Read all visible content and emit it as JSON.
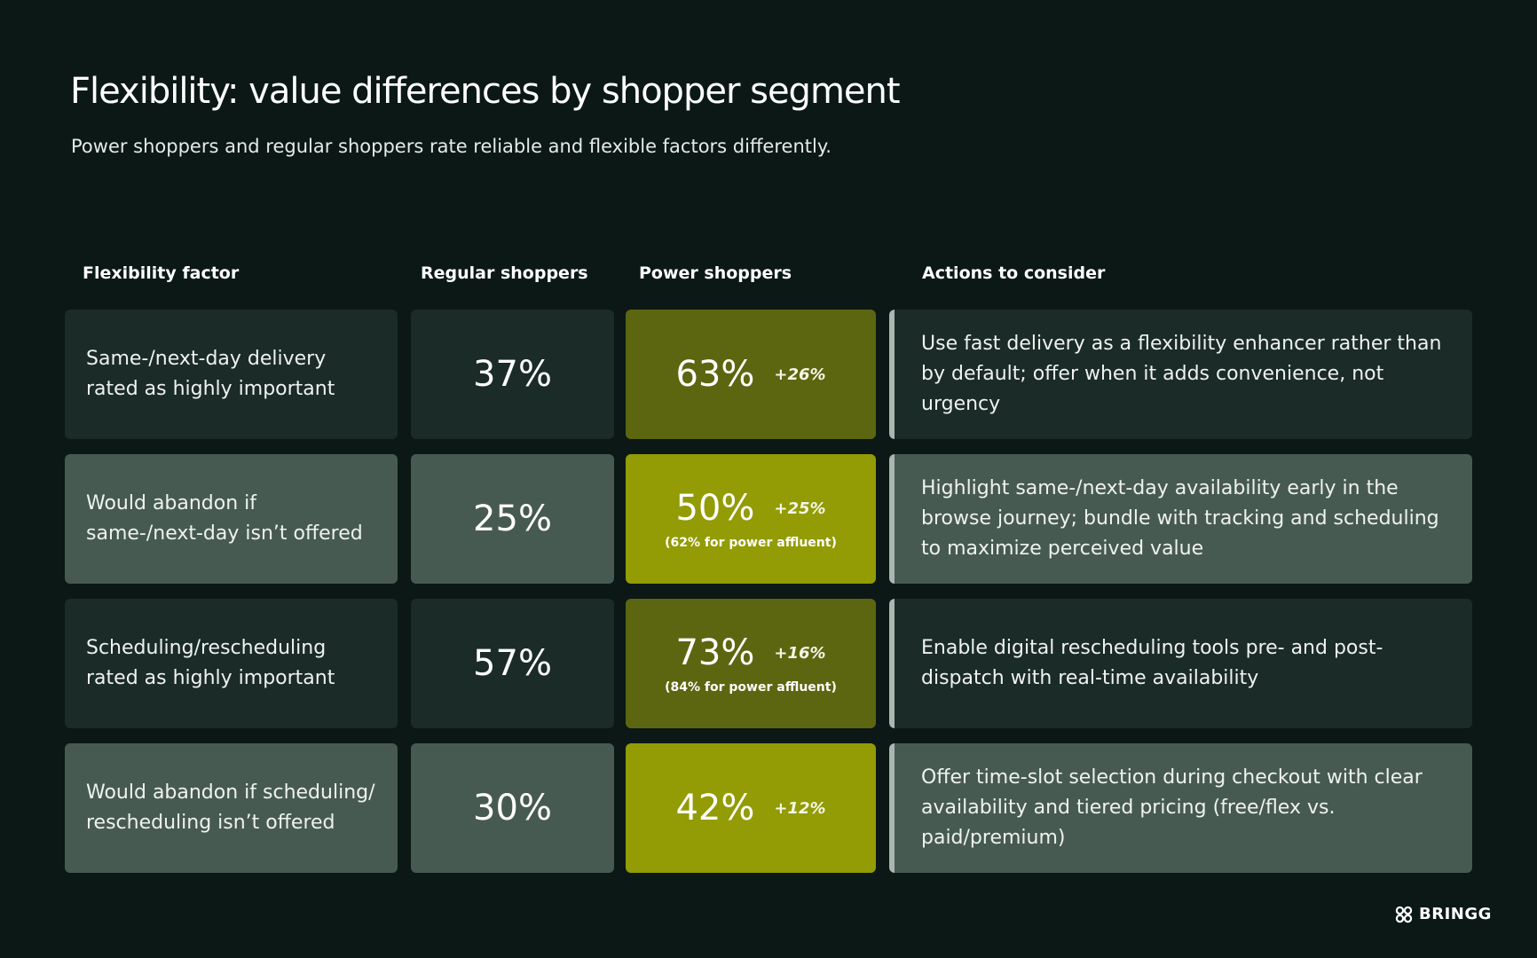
{
  "header": {
    "title": "Flexibility: value differences by shopper segment",
    "subtitle": "Power shoppers and regular shoppers rate reliable and flexible factors differently."
  },
  "table": {
    "columns": {
      "factor": "Flexibility factor",
      "regular": "Regular shoppers",
      "power": "Power shoppers",
      "actions": "Actions to consider"
    },
    "rows": [
      {
        "factor": "Same-/next-day delivery rated as highly important",
        "regular": "37%",
        "power": "63%",
        "power_delta": "+26%",
        "power_note": "",
        "action": "Use fast delivery as a flexibility enhancer rather than by default; offer when it adds convenience, not urgency"
      },
      {
        "factor": "Would abandon if same-/next-day isn’t offered",
        "regular": "25%",
        "power": "50%",
        "power_delta": "+25%",
        "power_note": "(62% for power affluent)",
        "action": "Highlight same-/next-day availability early in the browse journey; bundle with tracking and scheduling to maximize perceived value"
      },
      {
        "factor": "Scheduling/rescheduling rated as highly important",
        "regular": "57%",
        "power": "73%",
        "power_delta": "+16%",
        "power_note": "(84% for power affluent)",
        "action": "Enable digital rescheduling tools pre- and post-dispatch with real-time availability"
      },
      {
        "factor": "Would abandon if scheduling/ rescheduling isn’t offered",
        "regular": "30%",
        "power": "42%",
        "power_delta": "+12%",
        "power_note": "",
        "action": "Offer time-slot selection during checkout with clear availability and tiered pricing (free/flex vs. paid/premium)"
      }
    ]
  },
  "brand": {
    "name": "BRINGG",
    "icon": "bringg-logo-icon"
  },
  "colors": {
    "background": "#0b1815",
    "row_dark": "#1b2b27",
    "row_light": "#475a52",
    "power_dark": "#5c6610",
    "power_light": "#939b05",
    "accent_bar": "#a9b7b1"
  }
}
